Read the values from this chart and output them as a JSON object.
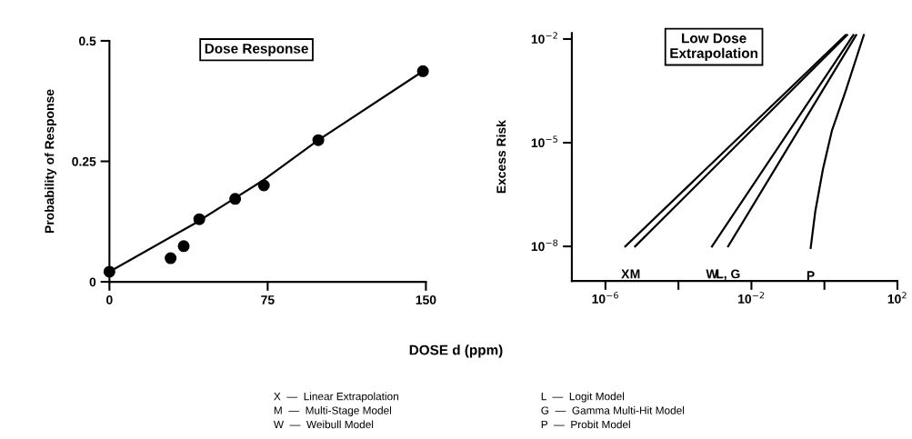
{
  "chart_data": [
    {
      "type": "scatter",
      "title": "Dose Response",
      "xlabel": "DOSE d (ppm)",
      "ylabel": "Probability of Response",
      "xlim": [
        0,
        150
      ],
      "ylim": [
        0,
        0.5
      ],
      "xticks": [
        0,
        75,
        150
      ],
      "yticks": [
        0,
        0.25,
        0.5
      ],
      "grid": false,
      "marker": "circle",
      "series": [
        {
          "type": "scatter",
          "color": "#000000",
          "x": [
            0,
            29,
            35.2,
            42.6,
            59.6,
            73.2,
            99,
            148.6
          ],
          "values": [
            0.021,
            0.049,
            0.074,
            0.13,
            0.172,
            0.2,
            0.294,
            0.437
          ]
        },
        {
          "type": "line",
          "color": "#000000",
          "marker": "none",
          "x": [
            0,
            40,
            73,
            99,
            148.6
          ],
          "values": [
            0.021,
            0.12,
            0.211,
            0.294,
            0.437
          ]
        }
      ]
    },
    {
      "type": "line",
      "title": "Low Dose\nExtrapolation",
      "ylabel": "Excess Risk",
      "log": "xy",
      "xlim": [
        1.2e-07,
        100
      ],
      "ylim": [
        1e-09,
        0.015
      ],
      "xticks": [
        {
          "value": 1e-06,
          "label": "10$^{−6}$"
        },
        {
          "value": 0.0001,
          "label": null
        },
        {
          "value": 0.01,
          "label": "10$^{−2}$"
        },
        {
          "value": 1,
          "label": null
        },
        {
          "value": 100,
          "label": "10$^{2}$"
        }
      ],
      "yticks": [
        {
          "value": 1e-08,
          "label": "10$^{−8}$"
        },
        {
          "value": 1e-05,
          "label": "10$^{−5}$"
        },
        {
          "value": 0.01,
          "label": "10$^{−2}$"
        }
      ],
      "grid": false,
      "marker": "none",
      "line_style": "solid",
      "series": [
        {
          "color": "#000000",
          "x": [
            3.5e-06,
            3.8
          ],
          "values": [
            1e-08,
            0.013
          ]
        },
        {
          "color": "#000000",
          "x": [
            6.5e-06,
            4.2
          ],
          "values": [
            1e-08,
            0.013
          ]
        },
        {
          "color": "#000000",
          "x": [
            0.00083,
            6.2
          ],
          "values": [
            1e-08,
            0.013
          ]
        },
        {
          "color": "#000000",
          "x": [
            0.0023,
            7.4
          ],
          "values": [
            1e-08,
            0.013
          ]
        },
        {
          "color": "#000000",
          "x": [
            0.42,
            0.56,
            0.91,
            1.6,
            3.8,
            12
          ],
          "values": [
            9e-09,
            1e-07,
            1.7e-06,
            2.2e-05,
            0.00031,
            0.013
          ]
        }
      ],
      "annotations": [
        {
          "text": "X",
          "x": 3.5e-06,
          "y": 1e-08
        },
        {
          "text": "M",
          "x": 6.5e-06,
          "y": 1e-08
        },
        {
          "text": "W",
          "x": 0.00083,
          "y": 1e-08
        },
        {
          "text": "L, G",
          "x": 0.0023,
          "y": 1e-08
        },
        {
          "text": "P",
          "x": 0.42,
          "y": 9e-09
        },
        "X  —  Linear Extrapolation",
        "M  —  Multi-Stage Model",
        "W  —  Weibull Model",
        "L  —  Logit Model",
        "G  —  Gamma Multi-Hit Model",
        "P  —  Probit Model"
      ]
    }
  ]
}
